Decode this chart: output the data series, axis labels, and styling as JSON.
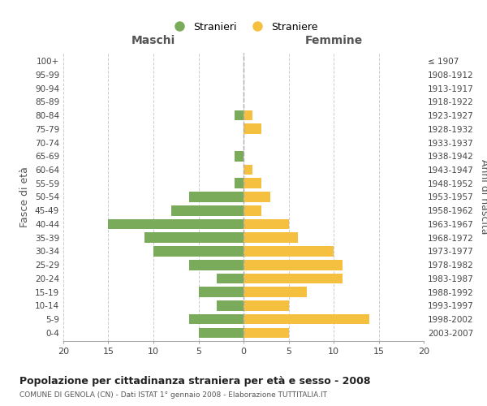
{
  "age_groups": [
    "0-4",
    "5-9",
    "10-14",
    "15-19",
    "20-24",
    "25-29",
    "30-34",
    "35-39",
    "40-44",
    "45-49",
    "50-54",
    "55-59",
    "60-64",
    "65-69",
    "70-74",
    "75-79",
    "80-84",
    "85-89",
    "90-94",
    "95-99",
    "100+"
  ],
  "birth_years": [
    "2003-2007",
    "1998-2002",
    "1993-1997",
    "1988-1992",
    "1983-1987",
    "1978-1982",
    "1973-1977",
    "1968-1972",
    "1963-1967",
    "1958-1962",
    "1953-1957",
    "1948-1952",
    "1943-1947",
    "1938-1942",
    "1933-1937",
    "1928-1932",
    "1923-1927",
    "1918-1922",
    "1913-1917",
    "1908-1912",
    "≤ 1907"
  ],
  "maschi": [
    5,
    6,
    3,
    5,
    3,
    6,
    10,
    11,
    15,
    8,
    6,
    1,
    0,
    1,
    0,
    0,
    1,
    0,
    0,
    0,
    0
  ],
  "femmine": [
    5,
    14,
    5,
    7,
    11,
    11,
    10,
    6,
    5,
    2,
    3,
    2,
    1,
    0,
    0,
    2,
    1,
    0,
    0,
    0,
    0
  ],
  "color_maschi": "#7aab5a",
  "color_femmine": "#f5c040",
  "background_color": "#ffffff",
  "grid_color": "#cccccc",
  "title": "Popolazione per cittadinanza straniera per età e sesso - 2008",
  "subtitle": "COMUNE DI GENOLA (CN) - Dati ISTAT 1° gennaio 2008 - Elaborazione TUTTITALIA.IT",
  "ylabel_left": "Fasce di età",
  "ylabel_right": "Anni di nascita",
  "xlabel_left": "Maschi",
  "xlabel_right": "Femmine",
  "legend_maschi": "Stranieri",
  "legend_femmine": "Straniere",
  "xlim": 20
}
